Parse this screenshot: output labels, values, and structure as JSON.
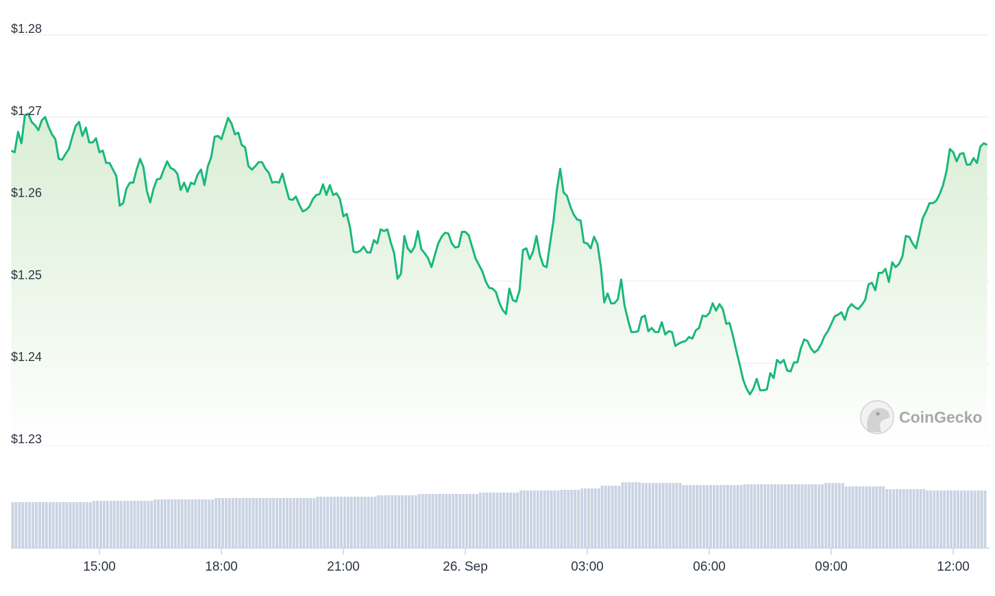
{
  "chart_data": {
    "type": "line",
    "title": "",
    "xlabel": "",
    "ylabel": "",
    "ylim": [
      1.23,
      1.28
    ],
    "grid": true,
    "y_ticks": [
      {
        "value": 1.28,
        "label": "$1.28"
      },
      {
        "value": 1.27,
        "label": "$1.27"
      },
      {
        "value": 1.26,
        "label": "$1.26"
      },
      {
        "value": 1.25,
        "label": "$1.25"
      },
      {
        "value": 1.24,
        "label": "$1.24"
      },
      {
        "value": 1.23,
        "label": "$1.23"
      }
    ],
    "x_interval_minutes": 5,
    "x_ticks": [
      {
        "t": 130,
        "label": "15:00"
      },
      {
        "t": 310,
        "label": "18:00"
      },
      {
        "t": 490,
        "label": "21:00"
      },
      {
        "t": 670,
        "label": "26. Sep"
      },
      {
        "t": 850,
        "label": "03:00"
      },
      {
        "t": 1030,
        "label": "06:00"
      },
      {
        "t": 1210,
        "label": "09:00"
      },
      {
        "t": 1390,
        "label": "12:00"
      }
    ],
    "series": [
      {
        "name": "Price",
        "color": "#19b77b",
        "values": [
          1.2659,
          1.2657,
          1.2682,
          1.2668,
          1.2702,
          1.2704,
          1.2694,
          1.269,
          1.2684,
          1.2696,
          1.27,
          1.2688,
          1.2679,
          1.2673,
          1.2649,
          1.2648,
          1.2655,
          1.2661,
          1.2676,
          1.2689,
          1.2694,
          1.2677,
          1.2687,
          1.2669,
          1.2669,
          1.2674,
          1.2657,
          1.2659,
          1.2644,
          1.2644,
          1.2636,
          1.2628,
          1.2592,
          1.2595,
          1.2613,
          1.262,
          1.262,
          1.2636,
          1.2649,
          1.2639,
          1.261,
          1.2596,
          1.2613,
          1.2624,
          1.2625,
          1.2636,
          1.2646,
          1.2638,
          1.2636,
          1.2631,
          1.2611,
          1.262,
          1.2609,
          1.262,
          1.2618,
          1.263,
          1.2636,
          1.2617,
          1.264,
          1.2651,
          1.2676,
          1.2677,
          1.2673,
          1.2686,
          1.2699,
          1.2692,
          1.2679,
          1.2681,
          1.2666,
          1.2663,
          1.264,
          1.2636,
          1.264,
          1.2645,
          1.2645,
          1.2637,
          1.2632,
          1.262,
          1.2621,
          1.262,
          1.2631,
          1.2615,
          1.26,
          1.2599,
          1.2603,
          1.2593,
          1.2585,
          1.2587,
          1.2591,
          1.26,
          1.2605,
          1.2606,
          1.2618,
          1.2605,
          1.2617,
          1.2605,
          1.2607,
          1.26,
          1.2579,
          1.2582,
          1.2565,
          1.2536,
          1.2535,
          1.2537,
          1.2542,
          1.2535,
          1.2535,
          1.255,
          1.2546,
          1.2563,
          1.2561,
          1.2563,
          1.2547,
          1.2534,
          1.2503,
          1.2509,
          1.2555,
          1.254,
          1.2535,
          1.2542,
          1.2561,
          1.2539,
          1.2534,
          1.2528,
          1.2517,
          1.2532,
          1.2546,
          1.2554,
          1.2559,
          1.2558,
          1.2546,
          1.2541,
          1.2542,
          1.256,
          1.256,
          1.2556,
          1.2542,
          1.2528,
          1.252,
          1.2512,
          1.25,
          1.2492,
          1.2491,
          1.2487,
          1.2474,
          1.2465,
          1.246,
          1.2491,
          1.2477,
          1.2475,
          1.2489,
          1.2538,
          1.254,
          1.2527,
          1.2536,
          1.2555,
          1.2532,
          1.2519,
          1.2517,
          1.2546,
          1.2573,
          1.2611,
          1.2637,
          1.2608,
          1.2604,
          1.2591,
          1.2581,
          1.2575,
          1.2574,
          1.2547,
          1.2546,
          1.254,
          1.2554,
          1.2545,
          1.2518,
          1.2474,
          1.2485,
          1.2473,
          1.2473,
          1.2478,
          1.2502,
          1.247,
          1.2453,
          1.2438,
          1.2438,
          1.2439,
          1.2456,
          1.2458,
          1.2439,
          1.2443,
          1.2438,
          1.2438,
          1.245,
          1.2435,
          1.2439,
          1.2438,
          1.2421,
          1.2424,
          1.2426,
          1.2427,
          1.2432,
          1.243,
          1.244,
          1.2443,
          1.2458,
          1.2457,
          1.2461,
          1.2473,
          1.2464,
          1.2472,
          1.2466,
          1.2448,
          1.2449,
          1.2433,
          1.2415,
          1.2398,
          1.238,
          1.2369,
          1.2362,
          1.2369,
          1.2381,
          1.2367,
          1.2367,
          1.2368,
          1.2388,
          1.2382,
          1.2404,
          1.24,
          1.2404,
          1.2391,
          1.239,
          1.2401,
          1.2401,
          1.2418,
          1.2429,
          1.2427,
          1.2418,
          1.2413,
          1.2416,
          1.2423,
          1.2433,
          1.2439,
          1.2448,
          1.2457,
          1.2459,
          1.2462,
          1.2453,
          1.2467,
          1.2472,
          1.2468,
          1.2466,
          1.2471,
          1.2477,
          1.2496,
          1.2498,
          1.2489,
          1.251,
          1.251,
          1.2515,
          1.2499,
          1.2523,
          1.2517,
          1.2521,
          1.253,
          1.2555,
          1.2554,
          1.2546,
          1.254,
          1.2558,
          1.2577,
          1.2585,
          1.2595,
          1.2595,
          1.2598,
          1.2606,
          1.2617,
          1.2634,
          1.2661,
          1.2657,
          1.2646,
          1.2655,
          1.2656,
          1.2642,
          1.2642,
          1.265,
          1.2644,
          1.2664,
          1.2668,
          1.2666
        ]
      }
    ],
    "volume": {
      "interval_minutes": 30,
      "color": "#c9d3e3",
      "relative_values": [
        67,
        67,
        67,
        67,
        69,
        69,
        69,
        71,
        71,
        71,
        73,
        73,
        73,
        73,
        73,
        75,
        75,
        75,
        77,
        77,
        79,
        79,
        79,
        81,
        81,
        84,
        84,
        85,
        87,
        91,
        96,
        95,
        95,
        92,
        92,
        92,
        93,
        93,
        93,
        93,
        95,
        90,
        90,
        86,
        86,
        84,
        84,
        84
      ]
    }
  },
  "watermark": {
    "text": "CoinGecko"
  }
}
